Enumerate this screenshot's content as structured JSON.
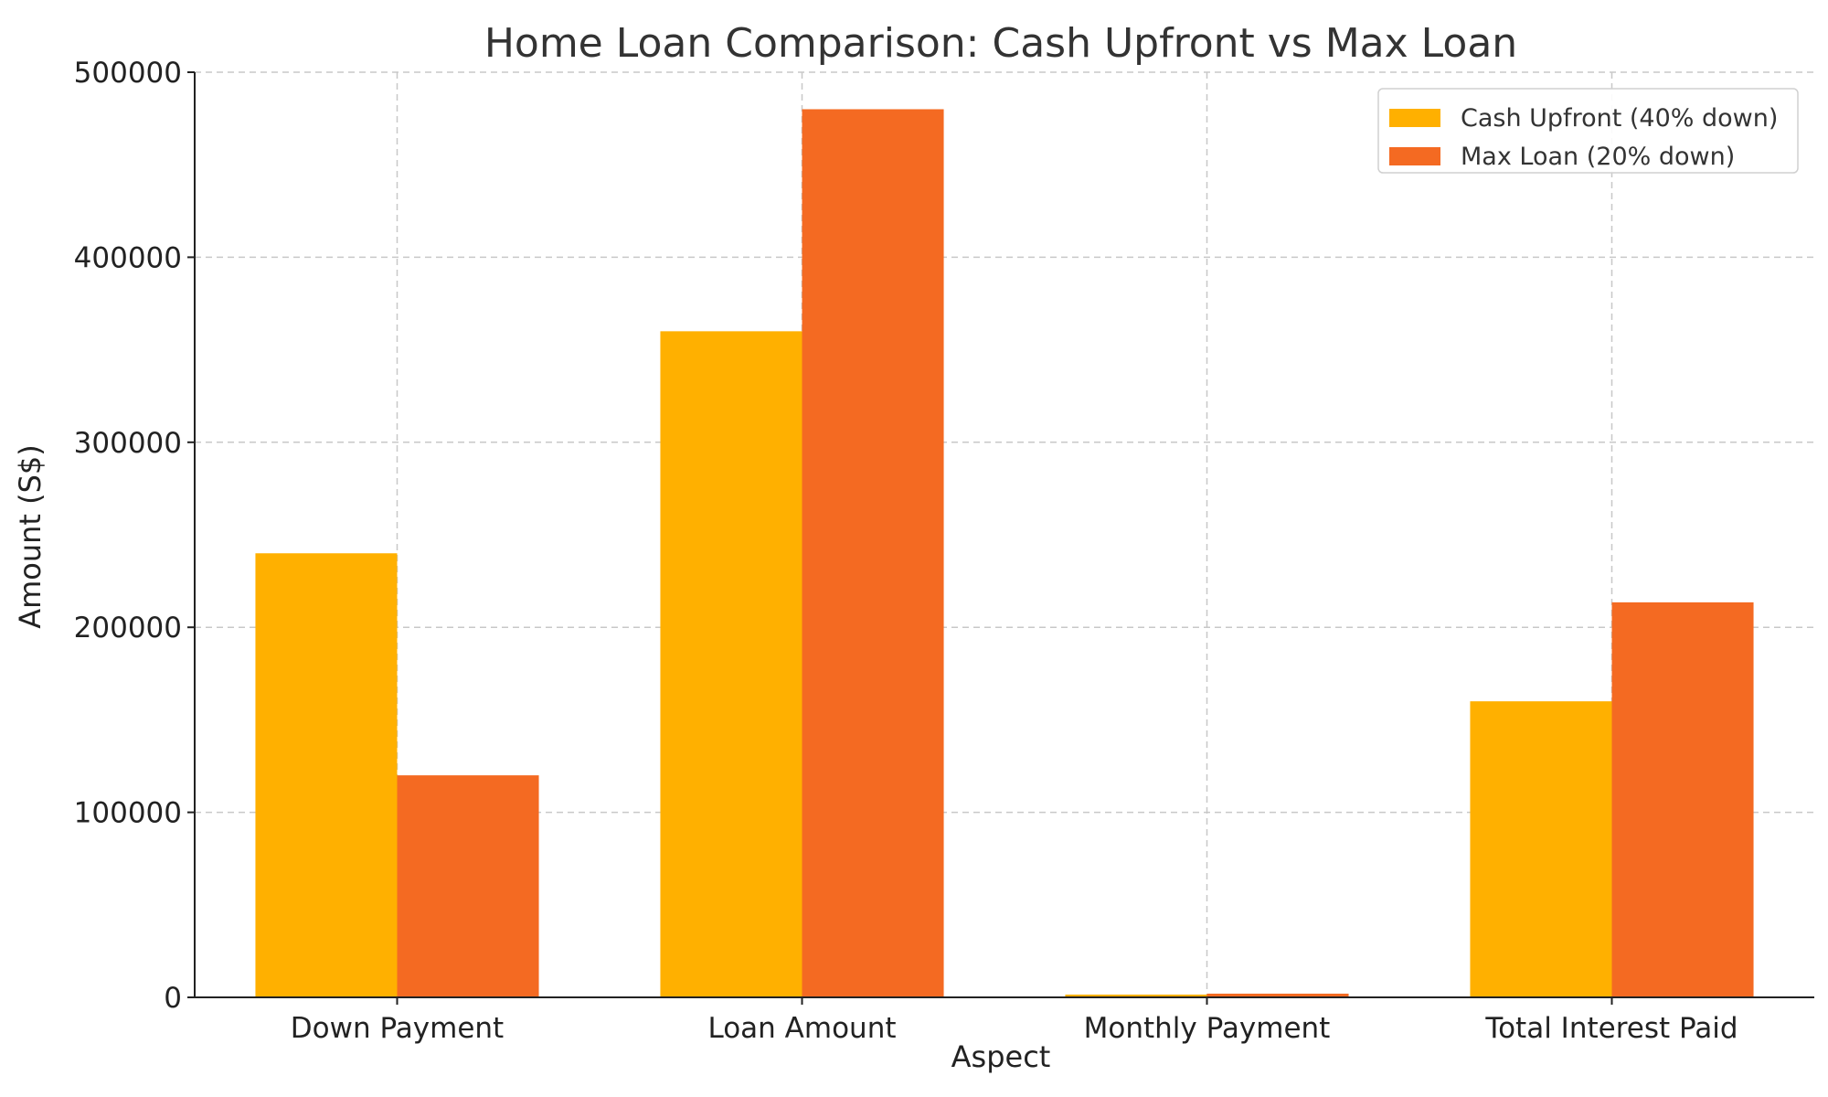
{
  "chart_data": {
    "type": "bar",
    "title": "Home Loan Comparison: Cash Upfront vs Max Loan",
    "xlabel": "Aspect",
    "ylabel": "Amount (S$)",
    "categories": [
      "Down Payment",
      "Loan Amount",
      "Monthly Payment",
      "Total Interest Paid"
    ],
    "series": [
      {
        "name": "Cash Upfront (40% down)",
        "color": "#FFB000",
        "values": [
          240000,
          360000,
          1500,
          160000
        ]
      },
      {
        "name": "Max Loan (20% down)",
        "color": "#F46A22",
        "values": [
          120000,
          480000,
          2000,
          213500
        ]
      }
    ],
    "ylim": [
      0,
      500000
    ],
    "yticks": [
      "0",
      "100000",
      "200000",
      "300000",
      "400000",
      "500000"
    ],
    "grid": true,
    "legend_position": "top-right"
  }
}
